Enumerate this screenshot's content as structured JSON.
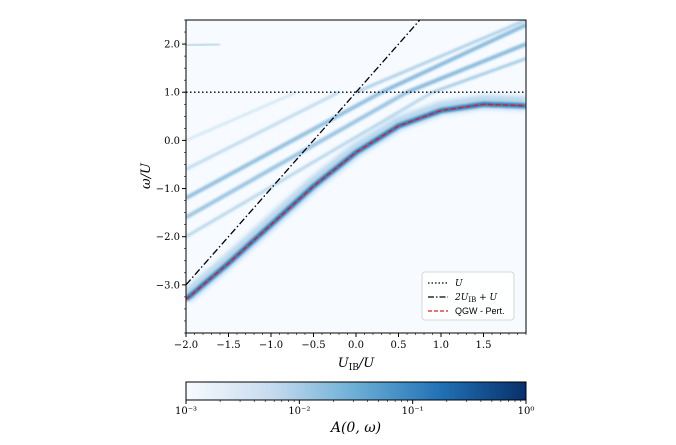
{
  "chart_data": {
    "type": "heatmap",
    "title": "",
    "xlabel": "U_IB/U",
    "ylabel": "ω/U",
    "xlim": [
      -2.0,
      2.0
    ],
    "ylim": [
      -4.0,
      2.5
    ],
    "xticks": [
      "−2.0",
      "−1.5",
      "−1.0",
      "−0.5",
      "0.0",
      "0.5",
      "1.0",
      "1.5"
    ],
    "xtick_values": [
      -2.0,
      -1.5,
      -1.0,
      -0.5,
      0.0,
      0.5,
      1.0,
      1.5
    ],
    "yticks": [
      "−3.0",
      "−2.0",
      "−1.0",
      "0.0",
      "1.0",
      "2.0"
    ],
    "ytick_values": [
      -3.0,
      -2.0,
      -1.0,
      0.0,
      1.0,
      2.0
    ],
    "colormap": "Blues",
    "color_scale": "log",
    "colorbar": {
      "label": "A(0, ω)",
      "range": [
        0.001,
        1
      ],
      "ticks": [
        "10⁻³",
        "10⁻²",
        "10⁻¹",
        "10⁰"
      ],
      "tick_values": [
        0.001,
        0.01,
        0.1,
        1
      ]
    },
    "legend_position": "lower-right",
    "series": [
      {
        "name": "U",
        "style": "dotted",
        "color": "#000000",
        "x": [
          -2.0,
          2.0
        ],
        "y": [
          1.0,
          1.0
        ]
      },
      {
        "name": "2U_IB + U",
        "style": "dashdot",
        "color": "#000000",
        "x": [
          -2.0,
          0.75
        ],
        "y": [
          -3.0,
          2.5
        ]
      },
      {
        "name": "QGW - Pert.",
        "style": "dashed",
        "color": "#e41a1c",
        "x": [
          -2.0,
          -1.5,
          -1.0,
          -0.5,
          0.0,
          0.5,
          1.0,
          1.5,
          2.0
        ],
        "y": [
          -3.3,
          -2.55,
          -1.75,
          -0.95,
          -0.25,
          0.3,
          0.62,
          0.75,
          0.72
        ]
      }
    ]
  },
  "legend": {
    "items": [
      "U",
      "2U_IB + U",
      "QGW - Pert."
    ]
  }
}
